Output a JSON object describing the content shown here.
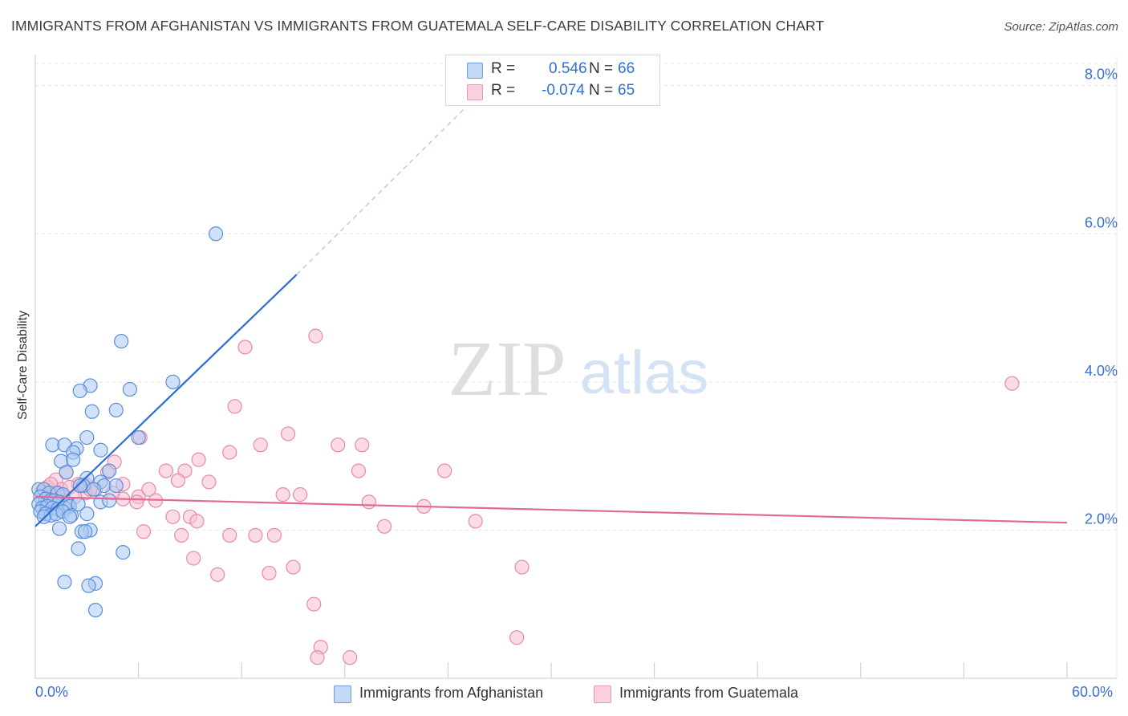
{
  "header": {
    "title": "IMMIGRANTS FROM AFGHANISTAN VS IMMIGRANTS FROM GUATEMALA SELF-CARE DISABILITY CORRELATION CHART",
    "source": "Source: ZipAtlas.com"
  },
  "watermark": {
    "zip": "ZIP",
    "atlas": "atlas"
  },
  "legend": {
    "afghanistan": {
      "r_label": "R =",
      "r_value": "0.546",
      "n_label": "N =",
      "n_value": "66"
    },
    "guatemala": {
      "r_label": "R =",
      "r_value": "-0.074",
      "n_label": "N =",
      "n_value": "65"
    }
  },
  "bottom_legend": {
    "afghanistan": "Immigrants from Afghanistan",
    "guatemala": "Immigrants from Guatemala"
  },
  "colors": {
    "afghanistan_fill": "#a9c8f3",
    "afghanistan_stroke": "#5b8ed8",
    "afghanistan_line": "#2a6fd1",
    "guatemala_fill": "#f8bfd2",
    "guatemala_stroke": "#e889a9",
    "guatemala_line": "#e06a95",
    "tick_label": "#3a6fd0",
    "grid": "#e3e3e3"
  },
  "chart_data": {
    "type": "scatter",
    "title": "IMMIGRANTS FROM AFGHANISTAN VS IMMIGRANTS FROM GUATEMALA SELF-CARE DISABILITY CORRELATION CHART",
    "xlabel": "",
    "ylabel": "Self-Care Disability",
    "xlim": [
      0,
      60
    ],
    "ylim": [
      0,
      8.3
    ],
    "x_tick_labels": [
      "0.0%",
      "60.0%"
    ],
    "y_ticks": [
      2.0,
      4.0,
      6.0,
      8.0
    ],
    "y_tick_labels": [
      "2.0%",
      "4.0%",
      "6.0%",
      "8.0%"
    ],
    "grid": true,
    "legend_position": "top-center",
    "series": [
      {
        "name": "Immigrants from Afghanistan",
        "r": 0.546,
        "n": 66,
        "trend": {
          "x": [
            0.0,
            15.2
          ],
          "y": [
            2.05,
            5.45
          ],
          "dashed_to": [
            25.0,
            7.7
          ]
        },
        "points": [
          [
            10.5,
            6.0
          ],
          [
            5.0,
            4.55
          ],
          [
            8.0,
            4.0
          ],
          [
            5.5,
            3.9
          ],
          [
            3.2,
            3.95
          ],
          [
            2.6,
            3.88
          ],
          [
            3.3,
            3.6
          ],
          [
            4.7,
            3.62
          ],
          [
            6.0,
            3.25
          ],
          [
            1.0,
            3.15
          ],
          [
            1.7,
            3.15
          ],
          [
            2.4,
            3.1
          ],
          [
            3.0,
            3.25
          ],
          [
            2.2,
            3.05
          ],
          [
            3.8,
            3.08
          ],
          [
            1.5,
            2.93
          ],
          [
            2.2,
            2.95
          ],
          [
            1.8,
            2.78
          ],
          [
            3.0,
            2.7
          ],
          [
            3.8,
            2.65
          ],
          [
            4.3,
            2.8
          ],
          [
            2.8,
            2.6
          ],
          [
            4.0,
            2.6
          ],
          [
            4.7,
            2.6
          ],
          [
            0.2,
            2.55
          ],
          [
            0.5,
            2.55
          ],
          [
            0.8,
            2.5
          ],
          [
            1.3,
            2.5
          ],
          [
            1.6,
            2.48
          ],
          [
            0.3,
            2.45
          ],
          [
            0.6,
            2.42
          ],
          [
            0.9,
            2.4
          ],
          [
            1.1,
            2.4
          ],
          [
            1.4,
            2.38
          ],
          [
            1.9,
            2.35
          ],
          [
            0.2,
            2.35
          ],
          [
            0.4,
            2.3
          ],
          [
            0.7,
            2.32
          ],
          [
            1.0,
            2.3
          ],
          [
            1.3,
            2.28
          ],
          [
            1.7,
            2.3
          ],
          [
            2.0,
            2.32
          ],
          [
            0.3,
            2.25
          ],
          [
            0.6,
            2.22
          ],
          [
            0.9,
            2.2
          ],
          [
            1.2,
            2.22
          ],
          [
            1.6,
            2.25
          ],
          [
            2.1,
            2.2
          ],
          [
            2.5,
            2.35
          ],
          [
            3.8,
            2.38
          ],
          [
            4.3,
            2.4
          ],
          [
            3.0,
            2.22
          ],
          [
            0.5,
            2.18
          ],
          [
            2.0,
            2.18
          ],
          [
            3.2,
            2.0
          ],
          [
            2.7,
            1.98
          ],
          [
            2.9,
            1.98
          ],
          [
            1.4,
            2.02
          ],
          [
            2.5,
            1.75
          ],
          [
            5.1,
            1.7
          ],
          [
            1.7,
            1.3
          ],
          [
            3.5,
            1.28
          ],
          [
            3.1,
            1.25
          ],
          [
            3.5,
            0.92
          ],
          [
            2.6,
            2.6
          ],
          [
            3.4,
            2.55
          ]
        ]
      },
      {
        "name": "Immigrants from Guatemala",
        "r": -0.074,
        "n": 65,
        "trend": {
          "x": [
            0.0,
            60.0
          ],
          "y": [
            2.45,
            2.1
          ]
        },
        "points": [
          [
            16.3,
            4.62
          ],
          [
            12.2,
            4.47
          ],
          [
            56.8,
            3.98
          ],
          [
            11.6,
            3.67
          ],
          [
            6.1,
            3.25
          ],
          [
            14.7,
            3.3
          ],
          [
            19.0,
            3.15
          ],
          [
            17.6,
            3.15
          ],
          [
            13.1,
            3.15
          ],
          [
            11.3,
            3.05
          ],
          [
            9.5,
            2.95
          ],
          [
            4.6,
            2.92
          ],
          [
            8.7,
            2.8
          ],
          [
            4.2,
            2.78
          ],
          [
            7.6,
            2.8
          ],
          [
            1.8,
            2.78
          ],
          [
            18.8,
            2.8
          ],
          [
            23.8,
            2.8
          ],
          [
            10.1,
            2.65
          ],
          [
            8.3,
            2.67
          ],
          [
            1.2,
            2.68
          ],
          [
            2.5,
            2.62
          ],
          [
            5.1,
            2.62
          ],
          [
            0.7,
            2.58
          ],
          [
            1.5,
            2.55
          ],
          [
            2.0,
            2.58
          ],
          [
            3.5,
            2.55
          ],
          [
            0.4,
            2.52
          ],
          [
            1.1,
            2.5
          ],
          [
            2.9,
            2.5
          ],
          [
            6.0,
            2.45
          ],
          [
            14.4,
            2.48
          ],
          [
            15.4,
            2.48
          ],
          [
            5.1,
            2.42
          ],
          [
            7.0,
            2.4
          ],
          [
            5.9,
            2.38
          ],
          [
            19.4,
            2.38
          ],
          [
            22.6,
            2.32
          ],
          [
            8.0,
            2.18
          ],
          [
            9.0,
            2.18
          ],
          [
            9.4,
            2.12
          ],
          [
            25.6,
            2.12
          ],
          [
            6.3,
            1.98
          ],
          [
            8.5,
            1.93
          ],
          [
            11.3,
            1.93
          ],
          [
            12.8,
            1.93
          ],
          [
            13.9,
            1.93
          ],
          [
            20.3,
            2.05
          ],
          [
            9.2,
            1.62
          ],
          [
            28.3,
            1.5
          ],
          [
            15.0,
            1.5
          ],
          [
            13.6,
            1.42
          ],
          [
            10.6,
            1.4
          ],
          [
            16.2,
            1.0
          ],
          [
            28.0,
            0.55
          ],
          [
            16.6,
            0.42
          ],
          [
            16.4,
            0.28
          ],
          [
            18.3,
            0.28
          ],
          [
            3.2,
            2.55
          ],
          [
            2.3,
            2.45
          ],
          [
            4.5,
            2.5
          ],
          [
            6.6,
            2.55
          ],
          [
            1.6,
            2.45
          ],
          [
            2.9,
            2.62
          ],
          [
            0.9,
            2.62
          ]
        ]
      }
    ]
  }
}
